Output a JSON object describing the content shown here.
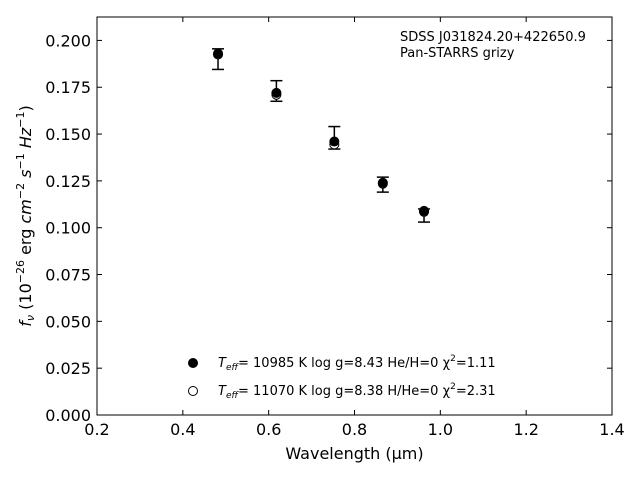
{
  "chart_data": {
    "type": "scatter",
    "xlabel": "Wavelength (μm)",
    "ylabel_parts": {
      "f": "f",
      "nu": "ν",
      "open": "(10",
      "exp26": "−26",
      "erg": "erg",
      "cm": "cm",
      "exp2": "−2",
      "s": "s",
      "exp1": "−1",
      "hz": "Hz",
      "exp1b": "−1",
      "close": ")"
    },
    "annotation": [
      "SDSS J031824.20+422650.9",
      "Pan-STARRS grizy"
    ],
    "xlim": [
      0.2,
      1.4
    ],
    "ylim": [
      0.0,
      0.2125
    ],
    "xticks": [
      "0.2",
      "0.4",
      "0.6",
      "0.8",
      "1.0",
      "1.2",
      "1.4"
    ],
    "yticks": [
      "0.000",
      "0.025",
      "0.050",
      "0.075",
      "0.100",
      "0.125",
      "0.150",
      "0.175",
      "0.200"
    ],
    "observed": {
      "x": [
        0.482,
        0.618,
        0.753,
        0.866,
        0.962
      ],
      "y": [
        0.19,
        0.173,
        0.1465,
        0.1235,
        0.108
      ],
      "err_low": [
        0.0055,
        0.0055,
        0.0045,
        0.0045,
        0.005
      ],
      "err_high": [
        0.0055,
        0.0055,
        0.0075,
        0.0035,
        0.002
      ]
    },
    "series": [
      {
        "marker": "filled",
        "x": [
          0.482,
          0.618,
          0.753,
          0.866,
          0.962
        ],
        "y": [
          0.193,
          0.172,
          0.146,
          0.124,
          0.109
        ],
        "legend": {
          "teff": "T",
          "sub": "eff",
          "rest": "= 10985 K  log g=8.43  He/H=0  χ",
          "sup": "2",
          "tail": "=1.11"
        }
      },
      {
        "marker": "open",
        "x": [
          0.482,
          0.618,
          0.753,
          0.866,
          0.962
        ],
        "y": [
          0.1925,
          0.171,
          0.1445,
          0.1235,
          0.1085
        ],
        "legend": {
          "teff": "T",
          "sub": "eff",
          "rest": "= 11070 K  log g=8.38  H/He=0  χ",
          "sup": "2",
          "tail": "=2.31"
        }
      }
    ]
  }
}
